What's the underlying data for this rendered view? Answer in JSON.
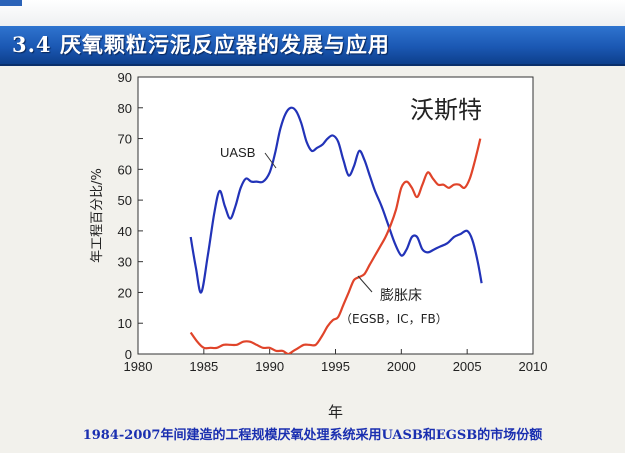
{
  "slide": {
    "title": "3.4 厌氧颗粒污泥反应器的发展与应用",
    "caption": "1984-2007年间建造的工程规模厌氧处理系统采用UASB和EGSB的市场份额",
    "watermark": "沃斯特",
    "colors": {
      "title_bar": "#1b58b3",
      "caption": "#1a2fb0",
      "uasb": "#2233b8",
      "egsb": "#e0442a"
    }
  },
  "chart_data": {
    "type": "line",
    "xlabel": "年",
    "ylabel": "年工程百分比/%",
    "xlim": [
      1980,
      2010
    ],
    "ylim": [
      0,
      90
    ],
    "xticks": [
      1980,
      1985,
      1990,
      1995,
      2000,
      2005,
      2010
    ],
    "yticks": [
      0,
      10,
      20,
      30,
      40,
      50,
      60,
      70,
      80,
      90
    ],
    "grid": false,
    "series": [
      {
        "name": "UASB",
        "x": [
          1984.0,
          1984.4,
          1984.8,
          1985.3,
          1985.8,
          1986.2,
          1986.6,
          1987.0,
          1987.4,
          1987.8,
          1988.2,
          1988.6,
          1989.0,
          1989.5,
          1990.0,
          1990.4,
          1990.8,
          1991.2,
          1991.6,
          1992.0,
          1992.4,
          1992.8,
          1993.2,
          1993.6,
          1994.0,
          1994.4,
          1994.8,
          1995.2,
          1995.6,
          1996.0,
          1996.4,
          1996.8,
          1997.2,
          1997.6,
          1998.0,
          1998.5,
          1999.0,
          1999.5,
          2000.0,
          2000.4,
          2000.8,
          2001.2,
          2001.6,
          2002.0,
          2002.5,
          2003.0,
          2003.5,
          2004.0,
          2004.5,
          2005.0,
          2005.4,
          2005.8,
          2006.1
        ],
        "y": [
          38,
          28,
          20,
          32,
          46,
          53,
          48,
          44,
          48,
          54,
          57,
          56,
          56,
          56,
          59,
          65,
          73,
          78,
          80,
          79,
          75,
          69,
          66,
          67,
          68,
          70,
          71,
          69,
          63,
          58,
          61,
          66,
          63,
          58,
          53,
          48,
          42,
          36,
          32,
          34,
          38,
          38,
          34,
          33,
          34,
          35,
          36,
          38,
          39,
          40,
          37,
          30,
          23
        ],
        "label": "UASB"
      },
      {
        "name": "膨胀床",
        "x": [
          1984.0,
          1984.5,
          1985.0,
          1985.5,
          1986.0,
          1986.5,
          1987.0,
          1987.5,
          1988.0,
          1988.5,
          1989.0,
          1989.5,
          1990.0,
          1990.5,
          1991.0,
          1991.4,
          1991.8,
          1992.2,
          1992.6,
          1993.0,
          1993.5,
          1994.0,
          1994.4,
          1994.8,
          1995.2,
          1995.6,
          1996.0,
          1996.4,
          1996.8,
          1997.2,
          1997.6,
          1998.0,
          1998.4,
          1998.8,
          1999.2,
          1999.6,
          2000.0,
          2000.4,
          2000.8,
          2001.2,
          2001.6,
          2002.0,
          2002.4,
          2002.8,
          2003.2,
          2003.6,
          2004.0,
          2004.4,
          2004.8,
          2005.2,
          2005.6,
          2006.0
        ],
        "y": [
          7,
          4,
          2,
          2,
          2,
          3,
          3,
          3,
          4,
          4,
          3,
          2,
          2,
          1,
          1,
          0,
          1,
          2,
          3,
          3,
          3,
          6,
          9,
          11,
          12,
          16,
          20,
          24,
          25,
          26,
          29,
          32,
          35,
          38,
          42,
          47,
          54,
          56,
          54,
          51,
          55,
          59,
          57,
          55,
          55,
          54,
          55,
          55,
          54,
          57,
          63,
          70
        ],
        "label_lines": [
          "膨胀床",
          "（EGSB，IC，FB）"
        ]
      }
    ]
  }
}
